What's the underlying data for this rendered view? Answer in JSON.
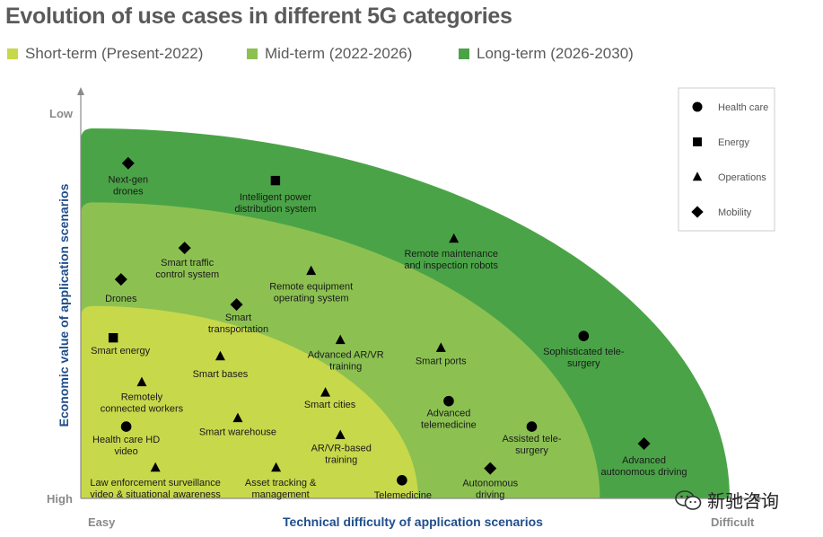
{
  "chart_data": {
    "type": "scatter",
    "title": "Evolution of use cases in different 5G categories",
    "xlabel": "Technical difficulty of application scenarios",
    "ylabel": "Economic value of application scenarios",
    "x_axis_ends": {
      "min": "Easy",
      "max": "Difficult"
    },
    "y_axis_ends": {
      "top": "Low",
      "bottom": "High"
    },
    "xlim": [
      0,
      100
    ],
    "ylim": [
      0,
      100
    ],
    "phases": [
      {
        "name": "Short-term (Present-2022)",
        "color": "#c8d84b",
        "radius": 52
      },
      {
        "name": "Mid-term (2022-2026)",
        "color": "#8cc152",
        "radius": 80
      },
      {
        "name": "Long-term (2026-2030)",
        "color": "#4aa447",
        "radius": 100
      }
    ],
    "legend": [
      {
        "category": "Health care",
        "marker": "circle"
      },
      {
        "category": "Energy",
        "marker": "square"
      },
      {
        "category": "Operations",
        "marker": "triangle"
      },
      {
        "category": "Mobility",
        "marker": "diamond"
      }
    ],
    "points": [
      {
        "label": "Next-gen drones",
        "category": "Mobility",
        "x": 7.3,
        "y": 90.6
      },
      {
        "label": "Intelligent power distribution system",
        "category": "Energy",
        "x": 30,
        "y": 85.9
      },
      {
        "label": "Remote maintenance and inspection robots",
        "category": "Operations",
        "x": 57.5,
        "y": 70.2
      },
      {
        "label": "Smart traffic control system",
        "category": "Mobility",
        "x": 16,
        "y": 67.7
      },
      {
        "label": "Drones",
        "category": "Mobility",
        "x": 6.2,
        "y": 59.2
      },
      {
        "label": "Remote equipment operating system",
        "category": "Operations",
        "x": 35.5,
        "y": 61.5
      },
      {
        "label": "Smart transportation",
        "category": "Mobility",
        "x": 24,
        "y": 52.4
      },
      {
        "label": "Smart energy",
        "category": "Energy",
        "x": 5,
        "y": 43.4
      },
      {
        "label": "Advanced AR/VR training",
        "category": "Operations",
        "x": 40,
        "y": 42.8
      },
      {
        "label": "Smart bases",
        "category": "Operations",
        "x": 21.5,
        "y": 38.4
      },
      {
        "label": "Smart ports",
        "category": "Operations",
        "x": 55.5,
        "y": 40.7
      },
      {
        "label": "Sophisticated tele-surgery",
        "category": "Health care",
        "x": 77.5,
        "y": 43.9
      },
      {
        "label": "Remotely connected workers",
        "category": "Operations",
        "x": 9.4,
        "y": 31.4
      },
      {
        "label": "Smart cities",
        "category": "Operations",
        "x": 37.7,
        "y": 28.6
      },
      {
        "label": "Advanced telemedicine",
        "category": "Health care",
        "x": 56.7,
        "y": 26.3
      },
      {
        "label": "Smart warehouse",
        "category": "Operations",
        "x": 24.2,
        "y": 21.7
      },
      {
        "label": "Health care HD video",
        "category": "Health care",
        "x": 7,
        "y": 19.4
      },
      {
        "label": "AR/VR-based training",
        "category": "Operations",
        "x": 40,
        "y": 17.1
      },
      {
        "label": "Assisted tele-surgery",
        "category": "Health care",
        "x": 69.5,
        "y": 19.4
      },
      {
        "label": "Advanced autonomous driving",
        "category": "Mobility",
        "x": 86.8,
        "y": 14.8
      },
      {
        "label": "Law enforcement surveillance video & situational awareness",
        "category": "Operations",
        "x": 11.5,
        "y": 8.3
      },
      {
        "label": "Asset tracking & management",
        "category": "Operations",
        "x": 30.1,
        "y": 8.3
      },
      {
        "label": "Telemedicine",
        "category": "Health care",
        "x": 49.5,
        "y": 4.9
      },
      {
        "label": "Autonomous driving",
        "category": "Mobility",
        "x": 63.1,
        "y": 8.1
      }
    ]
  },
  "watermark": {
    "text": "新驰咨询",
    "icon": "wechat-icon"
  }
}
